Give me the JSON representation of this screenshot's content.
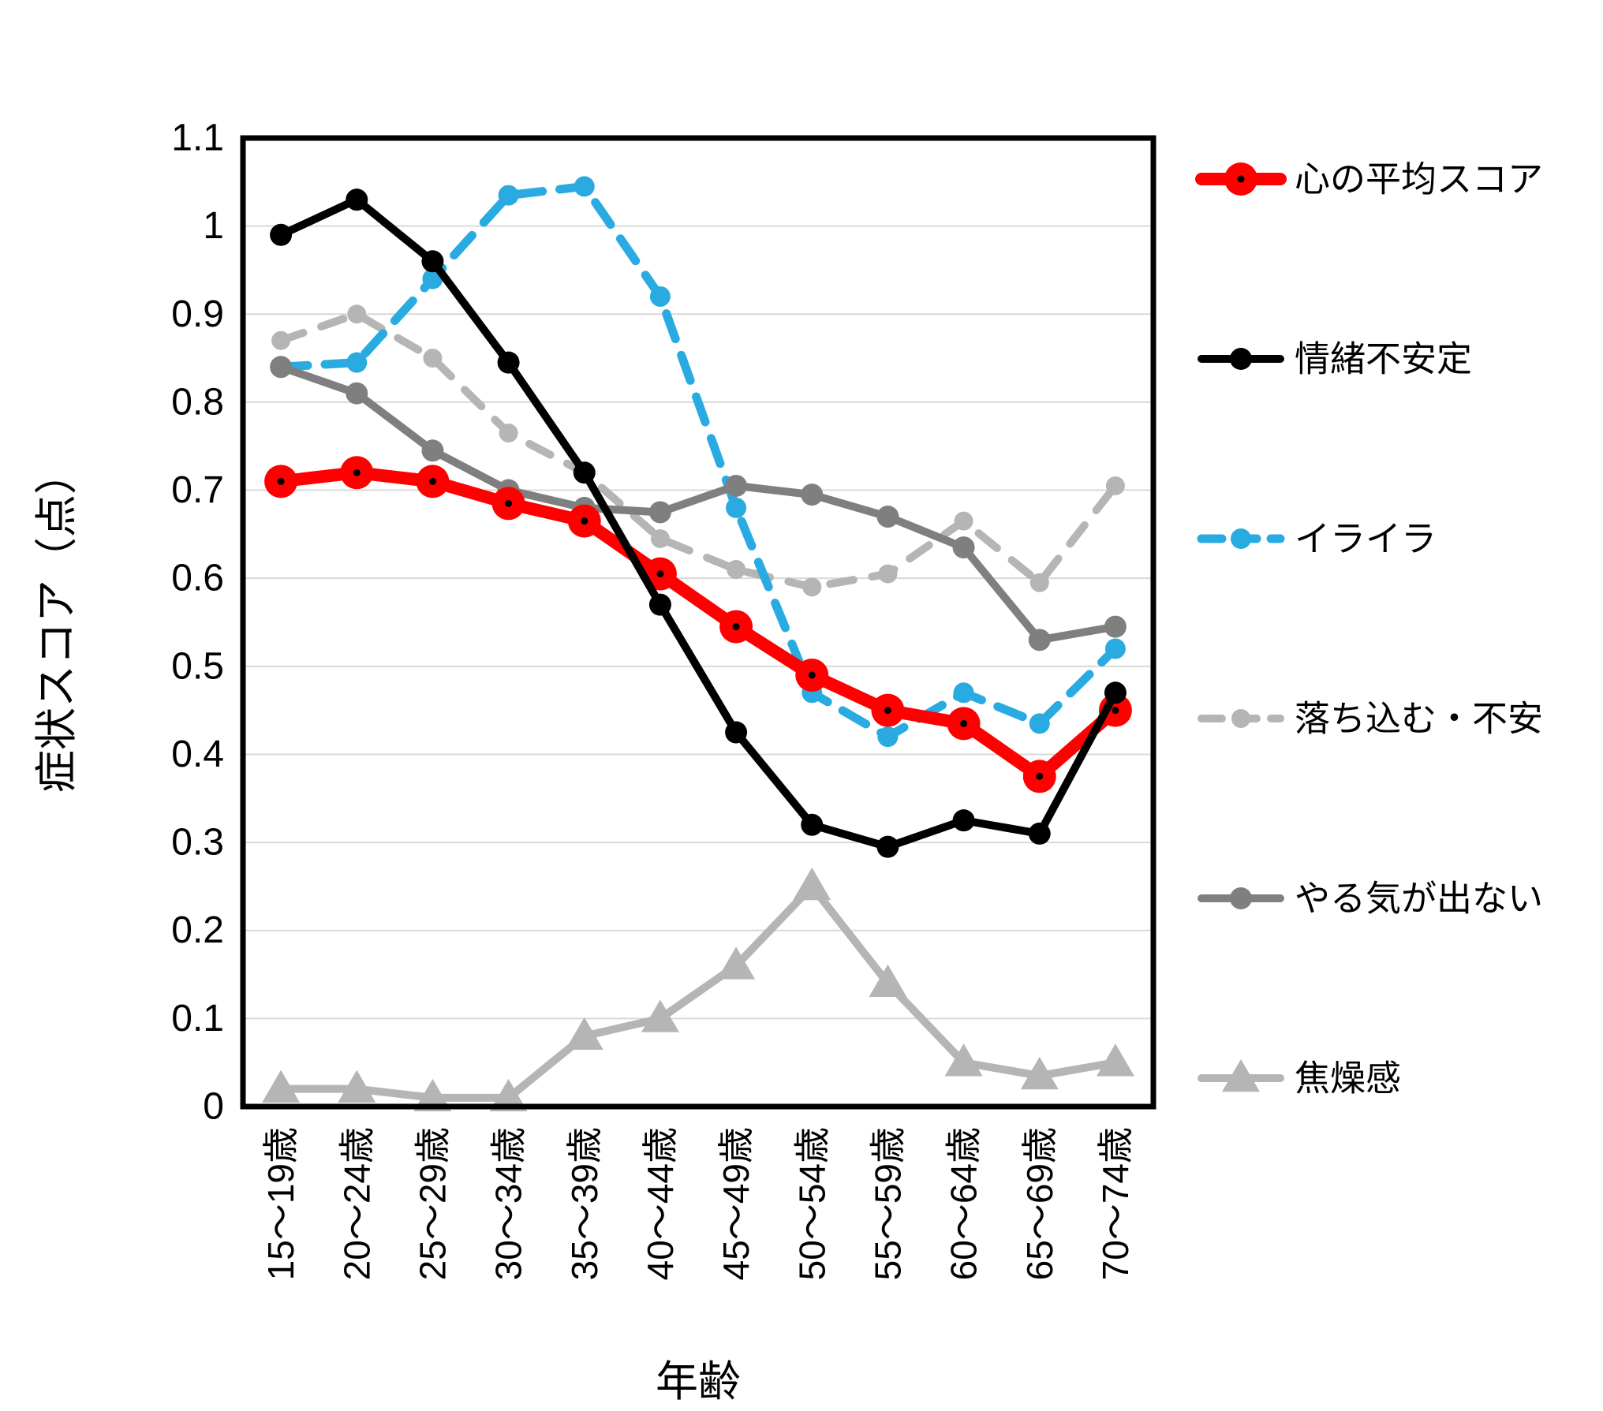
{
  "background": "#FFFFFF",
  "chart_data": {
    "type": "line",
    "title": "",
    "xlabel": "年齢",
    "ylabel": "症状スコア（点）",
    "ylim": [
      0,
      1.1
    ],
    "ytick_step": 0.1,
    "yticks": [
      "1.1",
      "1",
      "0.9",
      "0.8",
      "0.7",
      "0.6",
      "0.5",
      "0.4",
      "0.3",
      "0.2",
      "0.1",
      "0"
    ],
    "grid": "horizontal-only",
    "gridline_color": "#D9D9D9",
    "border_color": "#000000",
    "legend_position": "right",
    "categories": [
      "15～19歳",
      "20～24歳",
      "25～29歳",
      "30～34歳",
      "35～39歳",
      "40～44歳",
      "45～49歳",
      "50～54歳",
      "55～59歳",
      "60～64歳",
      "65～69歳",
      "70～74歳"
    ],
    "series": [
      {
        "name": "心の平均スコア",
        "key": "heart-average-score",
        "color": "#FF0000",
        "line_width": 16,
        "dash": null,
        "marker": "circle-dot",
        "marker_size": 21,
        "z": 4,
        "values": [
          0.71,
          0.72,
          0.71,
          0.685,
          0.665,
          0.605,
          0.545,
          0.49,
          0.45,
          0.435,
          0.375,
          0.45
        ]
      },
      {
        "name": "情緒不安定",
        "key": "emotional-instability",
        "color": "#000000",
        "line_width": 10,
        "dash": null,
        "marker": "circle",
        "marker_size": 14,
        "z": 5,
        "values": [
          0.99,
          1.03,
          0.96,
          0.845,
          0.72,
          0.57,
          0.425,
          0.32,
          0.295,
          0.325,
          0.31,
          0.47
        ]
      },
      {
        "name": "イライラ",
        "key": "irritability",
        "color": "#29ABE2",
        "line_width": 11,
        "dash": "34 22",
        "marker": "circle",
        "marker_size": 13,
        "z": 2,
        "values": [
          0.84,
          0.845,
          0.94,
          1.035,
          1.045,
          0.92,
          0.68,
          0.47,
          0.42,
          0.47,
          0.435,
          0.52
        ]
      },
      {
        "name": "落ち込む・不安",
        "key": "depressed-anxious",
        "color": "#B5B5B5",
        "line_width": 10,
        "dash": "30 24",
        "marker": "circle",
        "marker_size": 12,
        "z": 1,
        "values": [
          0.87,
          0.9,
          0.85,
          0.765,
          0.72,
          0.645,
          0.61,
          0.59,
          0.605,
          0.665,
          0.595,
          0.705
        ]
      },
      {
        "name": "やる気が出ない",
        "key": "no-motivation",
        "color": "#7F7F7F",
        "line_width": 10,
        "dash": null,
        "marker": "circle",
        "marker_size": 14,
        "z": 3,
        "values": [
          0.84,
          0.81,
          0.745,
          0.7,
          0.68,
          0.675,
          0.705,
          0.695,
          0.67,
          0.635,
          0.53,
          0.545
        ]
      },
      {
        "name": "焦燥感",
        "key": "impatience",
        "color": "#B5B5B5",
        "line_width": 10,
        "dash": null,
        "marker": "triangle",
        "marker_size": 24,
        "z": 0,
        "values": [
          0.02,
          0.02,
          0.01,
          0.01,
          0.08,
          0.1,
          0.16,
          0.25,
          0.14,
          0.05,
          0.035,
          0.05
        ]
      }
    ]
  }
}
